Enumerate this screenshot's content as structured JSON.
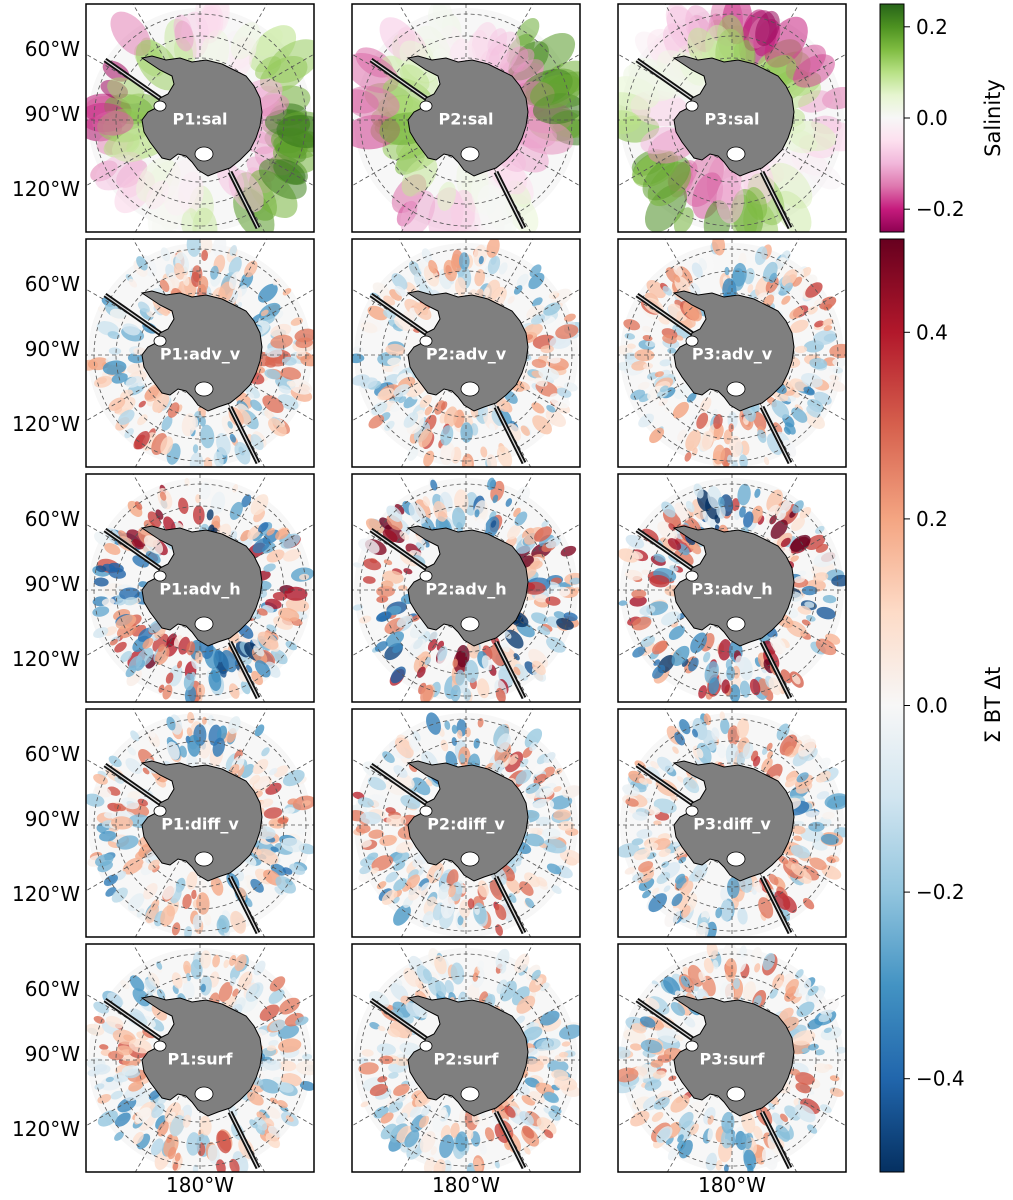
{
  "chart_data": {
    "type": "heatmap",
    "description_kind": "grid of south-polar stereographic maps of the Southern Ocean around Antarctica",
    "rows": [
      "sal",
      "adv_v",
      "adv_h",
      "diff_v",
      "surf"
    ],
    "columns": [
      "P1",
      "P2",
      "P3"
    ],
    "panels": [
      [
        {
          "label": "P1:sal"
        },
        {
          "label": "P2:sal"
        },
        {
          "label": "P3:sal"
        }
      ],
      [
        {
          "label": "P1:adv_v"
        },
        {
          "label": "P2:adv_v"
        },
        {
          "label": "P3:adv_v"
        }
      ],
      [
        {
          "label": "P1:adv_h"
        },
        {
          "label": "P2:adv_h"
        },
        {
          "label": "P3:adv_h"
        }
      ],
      [
        {
          "label": "P1:diff_v"
        },
        {
          "label": "P2:diff_v"
        },
        {
          "label": "P3:diff_v"
        }
      ],
      [
        {
          "label": "P1:surf"
        },
        {
          "label": "P2:surf"
        },
        {
          "label": "P3:surf"
        }
      ]
    ],
    "y_tick_labels": [
      "60°W",
      "90°W",
      "120°W"
    ],
    "x_tick_label": "180°W",
    "grid": true,
    "colorbars": [
      {
        "label": "Salinity",
        "colormap": "PiYG",
        "range": [
          -0.25,
          0.25
        ],
        "ticks": [
          0.2,
          0.0,
          -0.2
        ],
        "tick_labels": [
          "0.2",
          "0.0",
          "−0.2"
        ],
        "applies_to_rows": [
          "sal"
        ]
      },
      {
        "label": "Σ BT Δt",
        "colormap": "RdBu_r",
        "range": [
          -0.5,
          0.5
        ],
        "ticks": [
          0.4,
          0.2,
          0.0,
          -0.2,
          -0.4
        ],
        "tick_labels": [
          "0.4",
          "0.2",
          "0.0",
          "−0.2",
          "−0.4"
        ],
        "applies_to_rows": [
          "adv_v",
          "adv_h",
          "diff_v",
          "surf"
        ]
      }
    ]
  },
  "colors": {
    "land": "#7f7f7f",
    "ocean_missing": "#ffffff",
    "salinity_positive": "#4d9221",
    "salinity_negative": "#c51b7d",
    "budget_positive": "#67001f",
    "budget_negative": "#053061"
  }
}
